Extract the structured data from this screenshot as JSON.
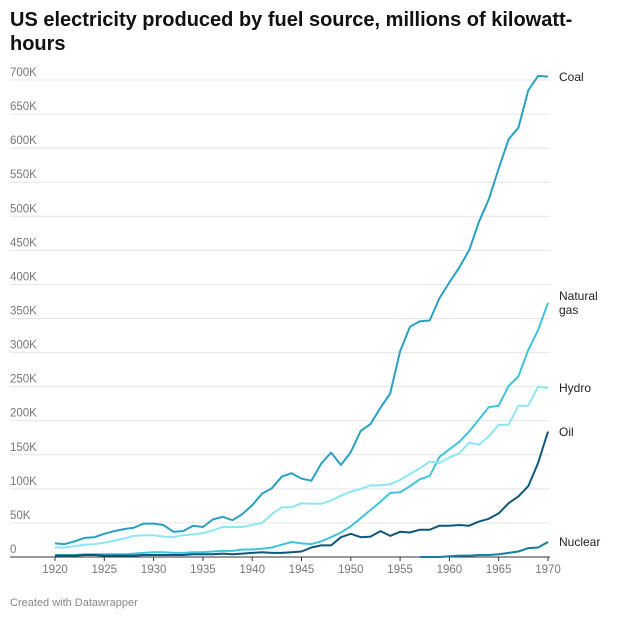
{
  "chart_data": {
    "type": "line",
    "title": "US electricity produced by fuel source, millions of kilowatt-hours",
    "footer": "Created with Datawrapper",
    "x": [
      1920,
      1921,
      1922,
      1923,
      1924,
      1925,
      1926,
      1927,
      1928,
      1929,
      1930,
      1931,
      1932,
      1933,
      1934,
      1935,
      1936,
      1937,
      1938,
      1939,
      1940,
      1941,
      1942,
      1943,
      1944,
      1945,
      1946,
      1947,
      1948,
      1949,
      1950,
      1951,
      1952,
      1953,
      1954,
      1955,
      1956,
      1957,
      1958,
      1959,
      1960,
      1961,
      1962,
      1963,
      1964,
      1965,
      1966,
      1967,
      1968,
      1969,
      1970
    ],
    "xlim": [
      1920,
      1970
    ],
    "xticks": [
      1920,
      1925,
      1930,
      1935,
      1940,
      1945,
      1950,
      1955,
      1960,
      1965,
      1970
    ],
    "ylim": [
      0,
      700000
    ],
    "yticks": [
      0,
      {
        "value": 50000,
        "label": "50K"
      },
      {
        "value": 100000,
        "label": "100K"
      },
      {
        "value": 150000,
        "label": "150K"
      },
      {
        "value": 200000,
        "label": "200K"
      },
      {
        "value": 250000,
        "label": "250K"
      },
      {
        "value": 300000,
        "label": "300K"
      },
      {
        "value": 350000,
        "label": "350K"
      },
      {
        "value": 400000,
        "label": "400K"
      },
      {
        "value": 450000,
        "label": "450K"
      },
      {
        "value": 500000,
        "label": "500K"
      },
      {
        "value": 550000,
        "label": "550K"
      },
      {
        "value": 600000,
        "label": "600K"
      },
      {
        "value": 650000,
        "label": "650K"
      },
      {
        "value": 700000,
        "label": "700K"
      }
    ],
    "grid": true,
    "series": [
      {
        "name": "Coal",
        "color": "#2aa0c4",
        "values": [
          20000,
          19000,
          23000,
          28000,
          29000,
          34000,
          38000,
          41000,
          43000,
          49000,
          49000,
          47000,
          37000,
          38000,
          46000,
          44000,
          55000,
          59000,
          54000,
          63000,
          76000,
          93000,
          101000,
          118000,
          123000,
          115000,
          112000,
          137000,
          153000,
          135000,
          154000,
          185000,
          195000,
          219000,
          240000,
          302000,
          338000,
          346000,
          347000,
          380000,
          403000,
          425000,
          450000,
          492000,
          525000,
          570000,
          613000,
          630000,
          685000,
          706000,
          705000
        ]
      },
      {
        "name": "Natural gas",
        "color": "#3ec4df",
        "values": [
          3000,
          3000,
          3000,
          4000,
          4000,
          4000,
          4000,
          4000,
          5000,
          6000,
          7000,
          7000,
          6000,
          6000,
          7000,
          7000,
          8000,
          9000,
          9000,
          11000,
          11000,
          12000,
          14000,
          18000,
          22000,
          20000,
          19000,
          23000,
          29000,
          36000,
          45000,
          57000,
          69000,
          81000,
          94000,
          95000,
          104000,
          114000,
          119000,
          147000,
          158000,
          169000,
          184000,
          202000,
          220000,
          222000,
          251000,
          265000,
          304000,
          333000,
          373000
        ]
      },
      {
        "name": "Hydro",
        "color": "#8de6f4",
        "values": [
          14000,
          14000,
          16000,
          18000,
          19000,
          21000,
          24000,
          27000,
          31000,
          32000,
          32000,
          30000,
          29000,
          32000,
          33000,
          35000,
          39000,
          44000,
          44000,
          44000,
          47000,
          50000,
          63000,
          73000,
          73000,
          79000,
          78000,
          78000,
          83000,
          90000,
          96000,
          100000,
          105000,
          105000,
          107000,
          113000,
          122000,
          130000,
          140000,
          138000,
          146000,
          152000,
          168000,
          165000,
          177000,
          194000,
          194000,
          222000,
          222000,
          250000,
          248000
        ]
      },
      {
        "name": "Oil",
        "color": "#0d5878",
        "values": [
          2000,
          2000,
          2000,
          3000,
          3000,
          2000,
          2000,
          2000,
          2000,
          3000,
          3000,
          3000,
          3000,
          3000,
          4000,
          4000,
          4000,
          5000,
          4000,
          5000,
          6000,
          7000,
          6000,
          6000,
          7000,
          8000,
          14000,
          17000,
          17000,
          29000,
          34000,
          29000,
          30000,
          38000,
          31000,
          37000,
          36000,
          40000,
          40000,
          46000,
          46000,
          47000,
          46000,
          52000,
          56000,
          64000,
          79000,
          89000,
          104000,
          138000,
          184000
        ]
      },
      {
        "name": "Nuclear",
        "color": "#15809f",
        "values": [
          null,
          null,
          null,
          null,
          null,
          null,
          null,
          null,
          null,
          null,
          null,
          null,
          null,
          null,
          null,
          null,
          null,
          null,
          null,
          null,
          null,
          null,
          null,
          null,
          null,
          null,
          null,
          null,
          null,
          null,
          null,
          null,
          null,
          null,
          null,
          null,
          null,
          0,
          0,
          0,
          1000,
          2000,
          2000,
          3000,
          3000,
          4000,
          6000,
          8000,
          13000,
          14000,
          22000
        ]
      }
    ]
  }
}
